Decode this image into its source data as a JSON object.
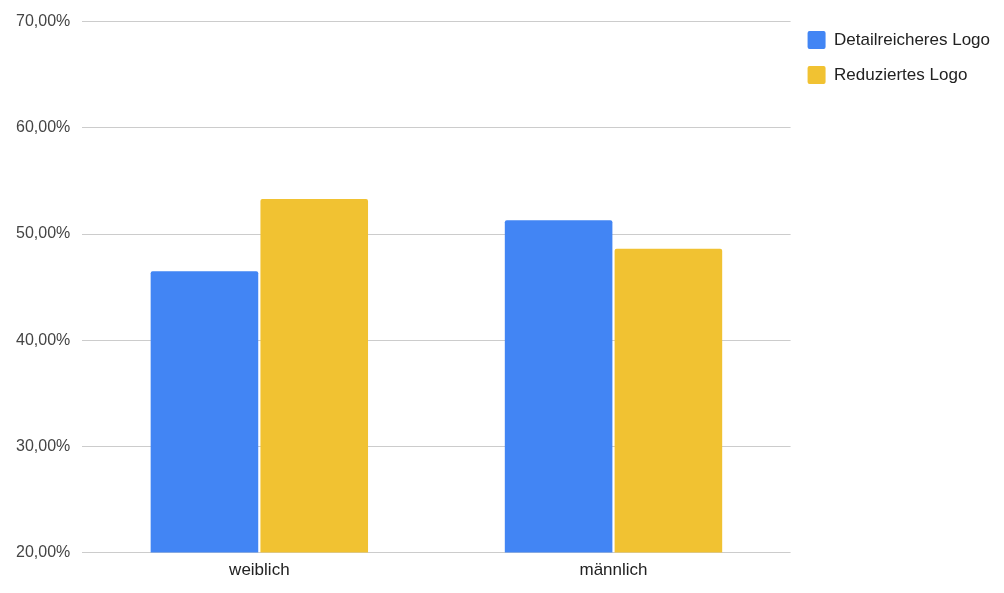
{
  "chart_data": {
    "type": "bar",
    "categories": [
      "weiblich",
      "männlich"
    ],
    "series": [
      {
        "name": "Detailreicheres Logo",
        "color": "#4285f4",
        "values": [
          46.5,
          51.3
        ]
      },
      {
        "name": "Reduziertes Logo",
        "color": "#f1c232",
        "values": [
          53.3,
          48.6
        ]
      }
    ],
    "ylim": [
      20,
      70
    ],
    "yticks": [
      {
        "value": 20,
        "label": "20,00%"
      },
      {
        "value": 30,
        "label": "30,00%"
      },
      {
        "value": 40,
        "label": "40,00%"
      },
      {
        "value": 50,
        "label": "50,00%"
      },
      {
        "value": 60,
        "label": "60,00%"
      },
      {
        "value": 70,
        "label": "70,00%"
      }
    ],
    "grid": "y",
    "legend": "top right"
  }
}
